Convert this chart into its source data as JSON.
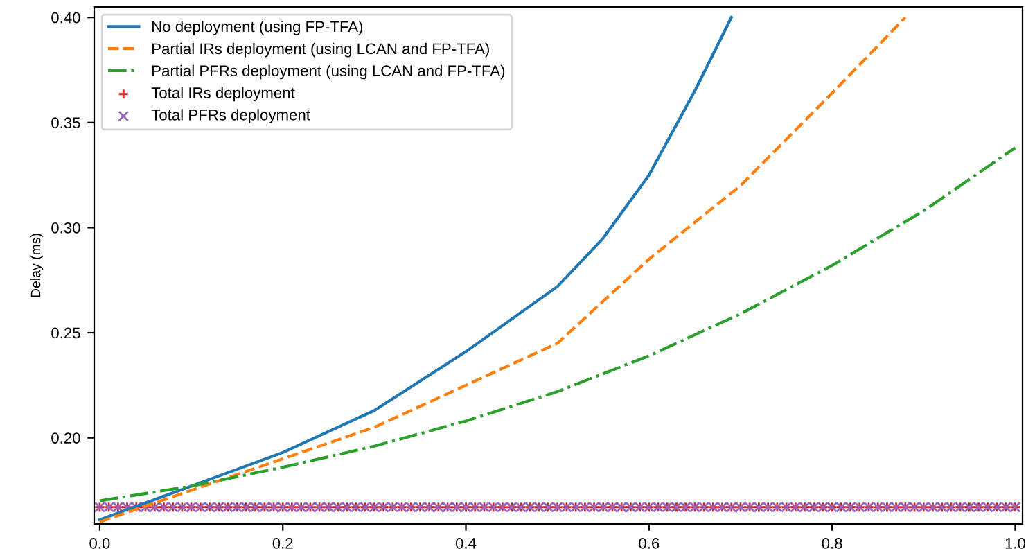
{
  "chart_data": {
    "type": "line",
    "ylabel": "Delay (ms)",
    "xlim": [
      -0.006,
      1.008
    ],
    "ylim": [
      0.159,
      0.405
    ],
    "xticks": [
      {
        "value": 0,
        "label": "0.0"
      },
      0.2,
      0.4,
      0.6,
      0.8,
      {
        "value": 1,
        "label": "1.0"
      }
    ],
    "yticks": [
      {
        "value": 0.2,
        "label": "0.20"
      },
      0.25,
      {
        "value": 0.3,
        "label": "0.30"
      },
      0.35,
      {
        "value": 0.4,
        "label": "0.40"
      }
    ],
    "legend": "top left",
    "grid": false,
    "series": [
      {
        "name": "No deployment (using FP-TFA)",
        "color": "#1f77b4",
        "line_style": "solid",
        "x": [
          0,
          0.1,
          0.2,
          0.3,
          0.4,
          0.5,
          0.55,
          0.6,
          0.65,
          0.69
        ],
        "values": [
          0.161,
          0.177,
          0.193,
          0.213,
          0.241,
          0.272,
          0.295,
          0.325,
          0.365,
          0.4
        ]
      },
      {
        "name": "Partial IRs deployment (using LCAN and FP-TFA)",
        "color": "#ff7f0e",
        "line_style": "dashed",
        "x": [
          0,
          0.1,
          0.2,
          0.3,
          0.4,
          0.5,
          0.6,
          0.7,
          0.8,
          0.88
        ],
        "values": [
          0.16,
          0.175,
          0.19,
          0.205,
          0.225,
          0.245,
          0.285,
          0.32,
          0.364,
          0.4
        ]
      },
      {
        "name": "Partial PFRs deployment (using LCAN and FP-TFA)",
        "color": "#2ca02c",
        "line_style": "dashdot",
        "x": [
          0,
          0.1,
          0.2,
          0.3,
          0.4,
          0.5,
          0.6,
          0.7,
          0.8,
          0.9,
          1.0
        ],
        "values": [
          0.17,
          0.177,
          0.186,
          0.196,
          0.208,
          0.222,
          0.239,
          0.259,
          0.282,
          0.308,
          0.338
        ]
      },
      {
        "name": "Total IRs deployment",
        "color": "#d62728",
        "type": "scatter",
        "marker": "plus",
        "x": [
          0,
          0.01,
          0.02,
          0.03,
          0.04,
          0.05,
          0.06,
          0.07,
          0.08,
          0.09,
          0.1,
          0.11,
          0.12,
          0.13,
          0.14,
          0.15,
          0.16,
          0.17,
          0.18,
          0.19,
          0.2,
          0.21,
          0.22,
          0.23,
          0.24,
          0.25,
          0.26,
          0.27,
          0.28,
          0.29,
          0.3,
          0.31,
          0.32,
          0.33,
          0.34,
          0.35,
          0.36,
          0.37,
          0.38,
          0.39,
          0.4,
          0.41,
          0.42,
          0.43,
          0.44,
          0.45,
          0.46,
          0.47,
          0.48,
          0.49,
          0.5,
          0.51,
          0.52,
          0.53,
          0.54,
          0.55,
          0.56,
          0.57,
          0.58,
          0.59,
          0.6,
          0.61,
          0.62,
          0.63,
          0.64,
          0.65,
          0.66,
          0.67,
          0.68,
          0.69,
          0.7,
          0.71,
          0.72,
          0.73,
          0.74,
          0.75,
          0.76,
          0.77,
          0.78,
          0.79,
          0.8,
          0.81,
          0.82,
          0.83,
          0.84,
          0.85,
          0.86,
          0.87,
          0.88,
          0.89,
          0.9,
          0.91,
          0.92,
          0.93,
          0.94,
          0.95,
          0.96,
          0.97,
          0.98,
          0.99,
          1.0
        ],
        "values": [
          0.167,
          0.167,
          0.167,
          0.167,
          0.167,
          0.167,
          0.167,
          0.167,
          0.167,
          0.167,
          0.167,
          0.167,
          0.167,
          0.167,
          0.167,
          0.167,
          0.167,
          0.167,
          0.167,
          0.167,
          0.167,
          0.167,
          0.167,
          0.167,
          0.167,
          0.167,
          0.167,
          0.167,
          0.167,
          0.167,
          0.167,
          0.167,
          0.167,
          0.167,
          0.167,
          0.167,
          0.167,
          0.167,
          0.167,
          0.167,
          0.167,
          0.167,
          0.167,
          0.167,
          0.167,
          0.167,
          0.167,
          0.167,
          0.167,
          0.167,
          0.167,
          0.167,
          0.167,
          0.167,
          0.167,
          0.167,
          0.167,
          0.167,
          0.167,
          0.167,
          0.167,
          0.167,
          0.167,
          0.167,
          0.167,
          0.167,
          0.167,
          0.167,
          0.167,
          0.167,
          0.167,
          0.167,
          0.167,
          0.167,
          0.167,
          0.167,
          0.167,
          0.167,
          0.167,
          0.167,
          0.167,
          0.167,
          0.167,
          0.167,
          0.167,
          0.167,
          0.167,
          0.167,
          0.167,
          0.167,
          0.167,
          0.167,
          0.167,
          0.167,
          0.167,
          0.167,
          0.167,
          0.167,
          0.167,
          0.167,
          0.167
        ]
      },
      {
        "name": "Total PFRs deployment",
        "color": "#9467bd",
        "type": "scatter",
        "marker": "cross",
        "x": [
          0,
          0.01,
          0.02,
          0.03,
          0.04,
          0.05,
          0.06,
          0.07,
          0.08,
          0.09,
          0.1,
          0.11,
          0.12,
          0.13,
          0.14,
          0.15,
          0.16,
          0.17,
          0.18,
          0.19,
          0.2,
          0.21,
          0.22,
          0.23,
          0.24,
          0.25,
          0.26,
          0.27,
          0.28,
          0.29,
          0.3,
          0.31,
          0.32,
          0.33,
          0.34,
          0.35,
          0.36,
          0.37,
          0.38,
          0.39,
          0.4,
          0.41,
          0.42,
          0.43,
          0.44,
          0.45,
          0.46,
          0.47,
          0.48,
          0.49,
          0.5,
          0.51,
          0.52,
          0.53,
          0.54,
          0.55,
          0.56,
          0.57,
          0.58,
          0.59,
          0.6,
          0.61,
          0.62,
          0.63,
          0.64,
          0.65,
          0.66,
          0.67,
          0.68,
          0.69,
          0.7,
          0.71,
          0.72,
          0.73,
          0.74,
          0.75,
          0.76,
          0.77,
          0.78,
          0.79,
          0.8,
          0.81,
          0.82,
          0.83,
          0.84,
          0.85,
          0.86,
          0.87,
          0.88,
          0.89,
          0.9,
          0.91,
          0.92,
          0.93,
          0.94,
          0.95,
          0.96,
          0.97,
          0.98,
          0.99,
          1.0
        ],
        "values": [
          0.167,
          0.167,
          0.167,
          0.167,
          0.167,
          0.167,
          0.167,
          0.167,
          0.167,
          0.167,
          0.167,
          0.167,
          0.167,
          0.167,
          0.167,
          0.167,
          0.167,
          0.167,
          0.167,
          0.167,
          0.167,
          0.167,
          0.167,
          0.167,
          0.167,
          0.167,
          0.167,
          0.167,
          0.167,
          0.167,
          0.167,
          0.167,
          0.167,
          0.167,
          0.167,
          0.167,
          0.167,
          0.167,
          0.167,
          0.167,
          0.167,
          0.167,
          0.167,
          0.167,
          0.167,
          0.167,
          0.167,
          0.167,
          0.167,
          0.167,
          0.167,
          0.167,
          0.167,
          0.167,
          0.167,
          0.167,
          0.167,
          0.167,
          0.167,
          0.167,
          0.167,
          0.167,
          0.167,
          0.167,
          0.167,
          0.167,
          0.167,
          0.167,
          0.167,
          0.167,
          0.167,
          0.167,
          0.167,
          0.167,
          0.167,
          0.167,
          0.167,
          0.167,
          0.167,
          0.167,
          0.167,
          0.167,
          0.167,
          0.167,
          0.167,
          0.167,
          0.167,
          0.167,
          0.167,
          0.167,
          0.167,
          0.167,
          0.167,
          0.167,
          0.167,
          0.167,
          0.167,
          0.167,
          0.167,
          0.167,
          0.167
        ]
      }
    ]
  }
}
